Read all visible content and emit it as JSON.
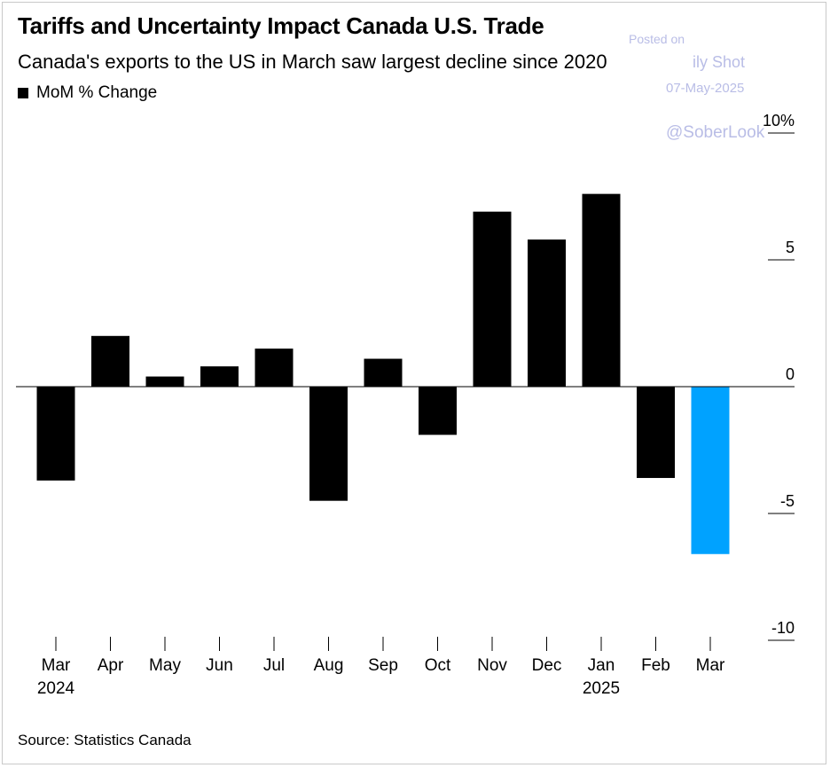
{
  "header": {
    "title": "Tariffs and Uncertainty Impact Canada U.S. Trade",
    "subtitle": "Canada's exports to the US in March saw largest decline since 2020",
    "legend_label": "MoM % Change"
  },
  "watermark": {
    "posted_on": "Posted on",
    "publication": "ily Shot",
    "date": "07-May-2025",
    "handle": "@SoberLook"
  },
  "footer": {
    "source": "Source: Statistics Canada"
  },
  "colors": {
    "bar_default": "#000000",
    "bar_highlight": "#00a2ff",
    "axis": "#000000",
    "watermark": "#b9bde6"
  },
  "chart_data": {
    "type": "bar",
    "title": "Tariffs and Uncertainty Impact Canada U.S. Trade",
    "subtitle": "Canada's exports to the US in March saw largest decline since 2020",
    "xlabel": "",
    "ylabel": "",
    "ylim": [
      -10,
      10
    ],
    "y_ticks": [
      {
        "value": 10,
        "label": "10%"
      },
      {
        "value": 5,
        "label": "5"
      },
      {
        "value": 0,
        "label": "0"
      },
      {
        "value": -5,
        "label": "-5"
      },
      {
        "value": -10,
        "label": "-10"
      }
    ],
    "y_axis_side": "right",
    "grid": false,
    "legend": "top-left",
    "categories": [
      "Mar",
      "Apr",
      "May",
      "Jun",
      "Jul",
      "Aug",
      "Sep",
      "Oct",
      "Nov",
      "Dec",
      "Jan",
      "Feb",
      "Mar"
    ],
    "year_labels": [
      {
        "index": 0,
        "label": "2024"
      },
      {
        "index": 10,
        "label": "2025"
      }
    ],
    "series": [
      {
        "name": "MoM % Change",
        "values": [
          -3.7,
          2.0,
          0.4,
          0.8,
          1.5,
          -4.5,
          1.1,
          -1.9,
          6.9,
          5.8,
          7.6,
          -3.6,
          -6.6
        ],
        "highlight_index": 12
      }
    ]
  }
}
